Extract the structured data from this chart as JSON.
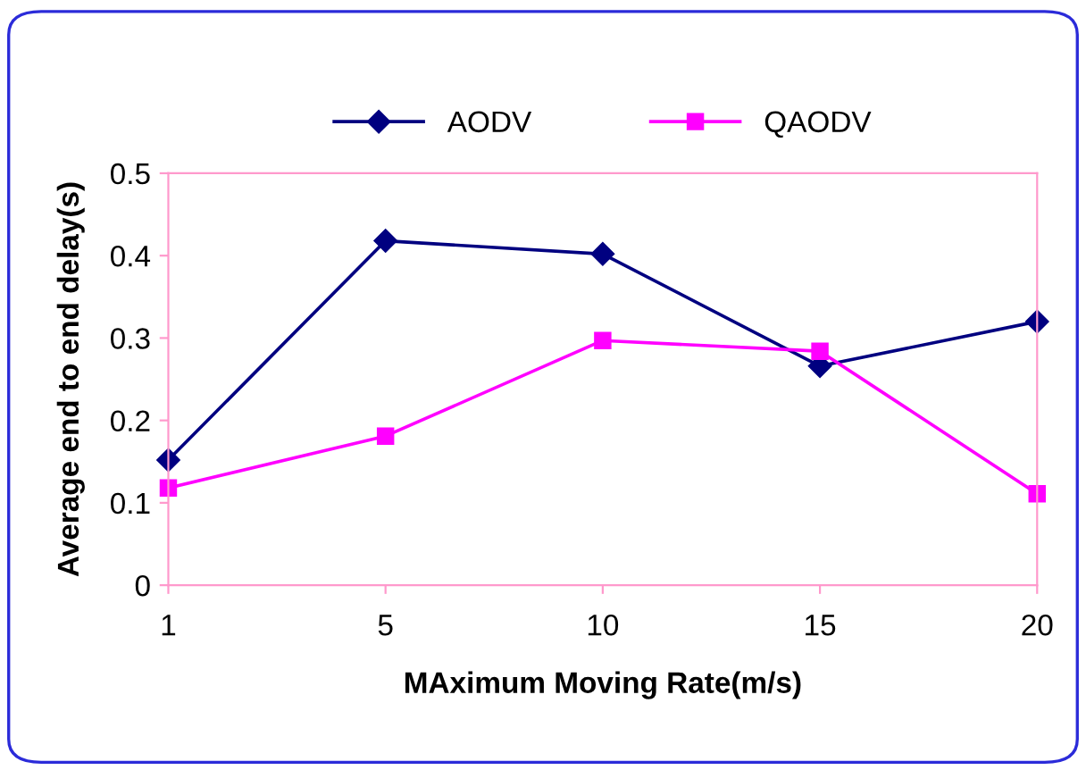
{
  "chart_data": {
    "type": "line",
    "xlabel": "MAximum Moving Rate(m/s)",
    "ylabel": "Average end to end delay(s)",
    "categories": [
      "1",
      "5",
      "10",
      "15",
      "20"
    ],
    "series": [
      {
        "name": "AODV",
        "color": "#000080",
        "marker": "diamond",
        "values": [
          0.152,
          0.418,
          0.402,
          0.266,
          0.32
        ]
      },
      {
        "name": "QAODV",
        "color": "#ff00ff",
        "marker": "square",
        "values": [
          0.118,
          0.181,
          0.297,
          0.284,
          0.111
        ]
      }
    ],
    "ylim": [
      0,
      0.5
    ],
    "yticks": [
      0,
      0.1,
      0.2,
      0.3,
      0.4,
      0.5
    ],
    "grid": false,
    "legend": "top",
    "line_style": "solid"
  }
}
